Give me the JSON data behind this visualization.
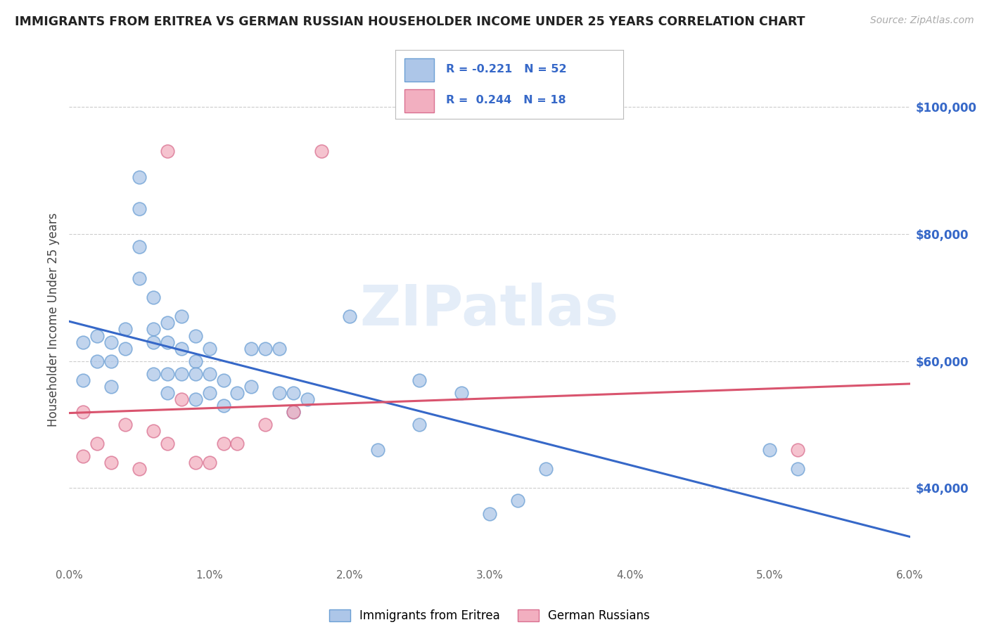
{
  "title": "IMMIGRANTS FROM ERITREA VS GERMAN RUSSIAN HOUSEHOLDER INCOME UNDER 25 YEARS CORRELATION CHART",
  "source": "Source: ZipAtlas.com",
  "ylabel": "Householder Income Under 25 years",
  "xlim": [
    0.0,
    0.06
  ],
  "ylim": [
    28000,
    105000
  ],
  "yticks": [
    40000,
    60000,
    80000,
    100000
  ],
  "ytick_labels": [
    "$40,000",
    "$60,000",
    "$80,000",
    "$100,000"
  ],
  "xticks": [
    0.0,
    0.01,
    0.02,
    0.03,
    0.04,
    0.05,
    0.06
  ],
  "xtick_labels": [
    "0.0%",
    "1.0%",
    "2.0%",
    "3.0%",
    "4.0%",
    "5.0%",
    "6.0%"
  ],
  "legend_label1": "Immigrants from Eritrea",
  "legend_label2": "German Russians",
  "r1": -0.221,
  "n1": 52,
  "r2": 0.244,
  "n2": 18,
  "background_color": "#ffffff",
  "scatter_color1": "#adc6e8",
  "scatter_color2": "#f2afc0",
  "line_color1": "#3668c8",
  "line_color2": "#d9546e",
  "scatter_edge1": "#6b9fd4",
  "scatter_edge2": "#d97090",
  "watermark": "ZIPatlas",
  "blue_scatter_x": [
    0.001,
    0.001,
    0.002,
    0.002,
    0.003,
    0.003,
    0.003,
    0.004,
    0.004,
    0.005,
    0.005,
    0.005,
    0.005,
    0.006,
    0.006,
    0.006,
    0.006,
    0.007,
    0.007,
    0.007,
    0.007,
    0.008,
    0.008,
    0.008,
    0.009,
    0.009,
    0.009,
    0.009,
    0.01,
    0.01,
    0.01,
    0.011,
    0.011,
    0.012,
    0.013,
    0.013,
    0.014,
    0.015,
    0.015,
    0.016,
    0.016,
    0.017,
    0.02,
    0.022,
    0.025,
    0.025,
    0.028,
    0.03,
    0.032,
    0.034,
    0.05,
    0.052
  ],
  "blue_scatter_y": [
    63000,
    57000,
    64000,
    60000,
    63000,
    60000,
    56000,
    65000,
    62000,
    89000,
    84000,
    78000,
    73000,
    70000,
    65000,
    63000,
    58000,
    66000,
    63000,
    58000,
    55000,
    67000,
    62000,
    58000,
    64000,
    60000,
    58000,
    54000,
    62000,
    58000,
    55000,
    57000,
    53000,
    55000,
    62000,
    56000,
    62000,
    62000,
    55000,
    55000,
    52000,
    54000,
    67000,
    46000,
    57000,
    50000,
    55000,
    36000,
    38000,
    43000,
    46000,
    43000
  ],
  "pink_scatter_x": [
    0.001,
    0.001,
    0.002,
    0.003,
    0.004,
    0.005,
    0.006,
    0.007,
    0.007,
    0.008,
    0.009,
    0.01,
    0.011,
    0.012,
    0.014,
    0.016,
    0.018,
    0.052
  ],
  "pink_scatter_y": [
    52000,
    45000,
    47000,
    44000,
    50000,
    43000,
    49000,
    93000,
    47000,
    54000,
    44000,
    44000,
    47000,
    47000,
    50000,
    52000,
    93000,
    46000
  ]
}
